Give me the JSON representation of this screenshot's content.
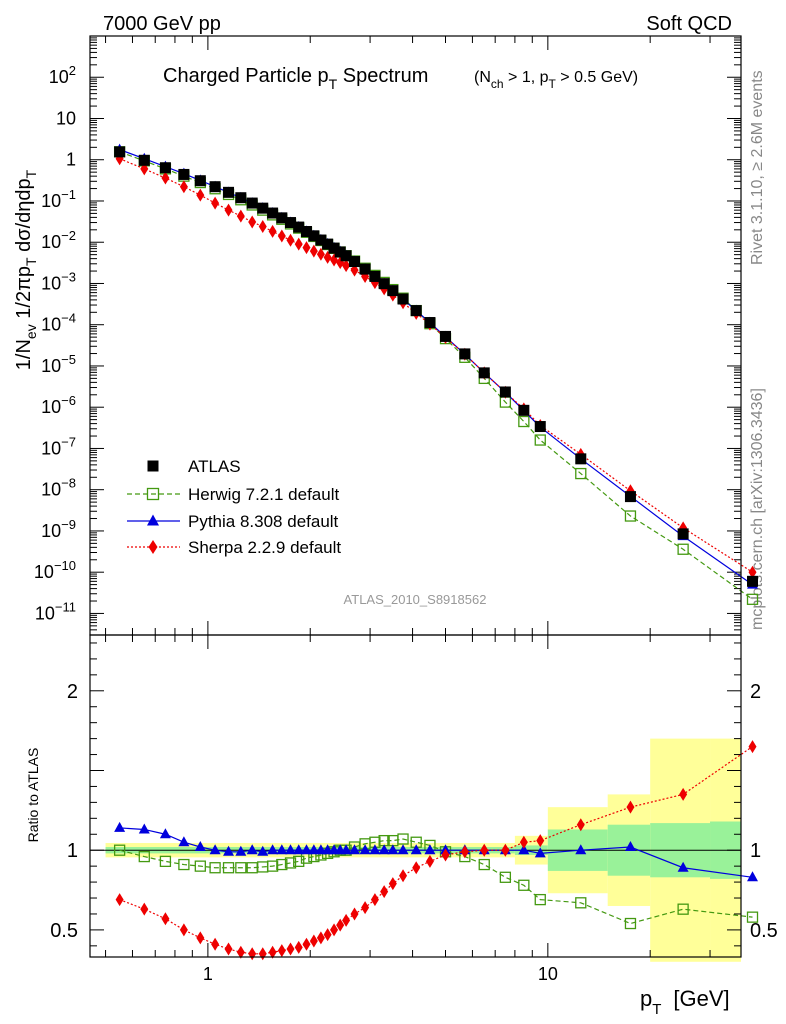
{
  "header": {
    "left": "7000 GeV pp",
    "right": "Soft QCD"
  },
  "side_labels": {
    "rivet": "Rivet 3.1.10, ≥ 2.6M events",
    "mcplots": "mcplots.cern.ch [arXiv:1306.3436]"
  },
  "chart_data": [
    {
      "type": "scatter",
      "title_main": "Charged Particle p",
      "title_main_sub": "T",
      "title_main_tail": " Spectrum",
      "title_cut_open": "(N",
      "title_cut_sub1": "ch",
      "title_cut_mid": " > 1, p",
      "title_cut_sub2": "T",
      "title_cut_tail": " > 0.5 GeV)",
      "ylabel": "1/N_ev 1/2πp_T dσ/dηdp_T",
      "watermark": "ATLAS_2010_S8918562",
      "xscale": "log",
      "yscale": "log",
      "xlim": [
        0.45,
        37
      ],
      "ylim": [
        3e-12,
        1000
      ],
      "ytick_labels": [
        "10^-11",
        "10^-10",
        "10^-9",
        "10^-8",
        "10^-7",
        "10^-6",
        "10^-5",
        "10^-4",
        "10^-3",
        "10^-2",
        "10^-1",
        "1",
        "10",
        "10^2"
      ],
      "legend": {
        "position": "lower-left",
        "entries": [
          "ATLAS",
          "Herwig 7.2.1 default",
          "Pythia 8.308 default",
          "Sherpa 2.2.9 default"
        ]
      },
      "x": [
        0.55,
        0.65,
        0.75,
        0.85,
        0.95,
        1.05,
        1.15,
        1.25,
        1.35,
        1.45,
        1.55,
        1.65,
        1.75,
        1.85,
        1.95,
        2.05,
        2.15,
        2.25,
        2.35,
        2.45,
        2.55,
        2.7,
        2.9,
        3.1,
        3.3,
        3.5,
        3.75,
        4.1,
        4.5,
        5.0,
        5.7,
        6.5,
        7.5,
        8.5,
        9.5,
        12.5,
        17.5,
        25.0,
        40.0
      ],
      "series": [
        {
          "name": "ATLAS",
          "color": "#000000",
          "marker": "square-filled",
          "values": [
            1.55,
            0.97,
            0.64,
            0.44,
            0.31,
            0.222,
            0.162,
            0.12,
            0.089,
            0.067,
            0.051,
            0.039,
            0.03,
            0.0233,
            0.0182,
            0.0143,
            0.0113,
            0.009,
            0.0072,
            0.0058,
            0.0047,
            0.0034,
            0.00223,
            0.00148,
            0.00099,
            0.00067,
            0.00042,
            0.00022,
            0.000113,
            5.2e-05,
            1.96e-05,
            6.8e-06,
            2.34e-06,
            8.4e-07,
            3.4e-07,
            5.6e-08,
            6.8e-09,
            8.5e-10,
            6e-11
          ]
        },
        {
          "name": "Herwig 7.2.1 default",
          "color": "#449911",
          "marker": "square-open",
          "line": "dashed",
          "values": [
            1.56,
            0.94,
            0.6,
            0.4,
            0.28,
            0.198,
            0.144,
            0.107,
            0.08,
            0.06,
            0.046,
            0.036,
            0.0278,
            0.022,
            0.0174,
            0.0138,
            0.011,
            0.0088,
            0.0071,
            0.0058,
            0.0047,
            0.0035,
            0.00234,
            0.00157,
            0.00106,
            0.00071,
            0.00044,
            0.00022,
            0.000106,
            4.6e-05,
            1.62e-05,
            5e-06,
            1.33e-06,
            4.5e-07,
            1.6e-07,
            2.46e-08,
            2.3e-09,
            3.6e-10,
            2.2e-11
          ]
        },
        {
          "name": "Pythia 8.308 default",
          "color": "#0000dd",
          "marker": "triangle",
          "line": "solid",
          "values": [
            1.76,
            1.06,
            0.68,
            0.46,
            0.315,
            0.222,
            0.161,
            0.119,
            0.089,
            0.067,
            0.051,
            0.039,
            0.03,
            0.0234,
            0.0183,
            0.0144,
            0.0114,
            0.0091,
            0.0073,
            0.0059,
            0.0047,
            0.0034,
            0.00222,
            0.00147,
            0.00098,
            0.00066,
            0.00041,
            0.00022,
            0.000112,
            5.1e-05,
            1.93e-05,
            6.8e-06,
            2.3e-06,
            8.3e-07,
            3.3e-07,
            5.6e-08,
            6.9e-09,
            7.5e-10,
            5e-11
          ]
        },
        {
          "name": "Sherpa 2.2.9 default",
          "color": "#ee0000",
          "marker": "diamond",
          "line": "dotted",
          "values": [
            1.06,
            0.6,
            0.36,
            0.222,
            0.139,
            0.089,
            0.06,
            0.043,
            0.031,
            0.024,
            0.0183,
            0.0142,
            0.0112,
            0.009,
            0.0074,
            0.0061,
            0.0051,
            0.0043,
            0.0037,
            0.0032,
            0.0027,
            0.0021,
            0.00148,
            0.00105,
            0.00074,
            0.00052,
            0.00034,
            0.000189,
            0.000103,
            4.9e-05,
            1.92e-05,
            6.8e-06,
            2.3e-06,
            9.1e-07,
            3.6e-07,
            7.2e-08,
            9.4e-09,
            1.19e-09,
            1e-10
          ]
        }
      ]
    },
    {
      "type": "scatter",
      "ylabel": "Ratio to ATLAS",
      "xlabel_main": "p",
      "xlabel_sub": "T",
      "xlabel_unit": "[GeV]",
      "xscale": "log",
      "xlim": [
        0.45,
        37
      ],
      "ylim": [
        0.33,
        2.35
      ],
      "xtick_labels": [
        "1",
        "10"
      ],
      "ytick_labels": [
        "0.5",
        "1",
        "2"
      ],
      "bands": [
        {
          "x0": 0.5,
          "x1": 8.0,
          "inner": 0.02,
          "outer": 0.045
        },
        {
          "x0": 8.0,
          "x1": 10.0,
          "inner": 0.03,
          "outer": 0.09
        },
        {
          "x0": 10.0,
          "x1": 15.0,
          "inner": 0.13,
          "outer": 0.27
        },
        {
          "x0": 15.0,
          "x1": 20.0,
          "inner": 0.16,
          "outer": 0.35
        },
        {
          "x0": 20.0,
          "x1": 30.0,
          "inner": 0.17,
          "outer": 0.7
        },
        {
          "x0": 30.0,
          "x1": 50.0,
          "inner": 0.18,
          "outer": 0.7
        }
      ],
      "x": [
        0.55,
        0.65,
        0.75,
        0.85,
        0.95,
        1.05,
        1.15,
        1.25,
        1.35,
        1.45,
        1.55,
        1.65,
        1.75,
        1.85,
        1.95,
        2.05,
        2.15,
        2.25,
        2.35,
        2.45,
        2.55,
        2.7,
        2.9,
        3.1,
        3.3,
        3.5,
        3.75,
        4.1,
        4.5,
        5.0,
        5.7,
        6.5,
        7.5,
        8.5,
        9.5,
        12.5,
        17.5,
        25.0,
        40.0
      ],
      "series": [
        {
          "name": "Herwig 7.2.1 default",
          "color": "#449911",
          "marker": "square-open",
          "line": "dashed",
          "values": [
            1.0,
            0.96,
            0.93,
            0.91,
            0.9,
            0.89,
            0.89,
            0.89,
            0.89,
            0.895,
            0.9,
            0.91,
            0.92,
            0.93,
            0.95,
            0.96,
            0.97,
            0.98,
            0.99,
            1.0,
            1.0,
            1.02,
            1.04,
            1.05,
            1.06,
            1.06,
            1.07,
            1.05,
            1.03,
            0.99,
            0.96,
            0.91,
            0.83,
            0.78,
            0.69,
            0.67,
            0.54,
            0.63,
            0.58
          ]
        },
        {
          "name": "Pythia 8.308 default",
          "color": "#0000dd",
          "marker": "triangle",
          "line": "solid",
          "values": [
            1.14,
            1.13,
            1.1,
            1.05,
            1.02,
            1.0,
            0.99,
            0.99,
            1.0,
            0.99,
            1.0,
            1.0,
            1.0,
            1.0,
            1.0,
            1.0,
            1.0,
            1.0,
            1.0,
            1.0,
            1.0,
            1.0,
            1.0,
            1.0,
            1.0,
            1.0,
            1.0,
            1.0,
            1.0,
            1.0,
            1.0,
            1.0,
            1.0,
            1.0,
            0.98,
            1.0,
            1.02,
            0.89,
            0.83
          ]
        },
        {
          "name": "Sherpa 2.2.9 default",
          "color": "#ee0000",
          "marker": "diamond",
          "line": "dotted",
          "values": [
            0.69,
            0.63,
            0.57,
            0.5,
            0.45,
            0.41,
            0.38,
            0.36,
            0.35,
            0.35,
            0.36,
            0.37,
            0.38,
            0.39,
            0.41,
            0.43,
            0.45,
            0.47,
            0.5,
            0.53,
            0.56,
            0.6,
            0.64,
            0.69,
            0.74,
            0.79,
            0.84,
            0.89,
            0.93,
            0.97,
            0.99,
            1.0,
            1.0,
            1.05,
            1.06,
            1.16,
            1.27,
            1.35,
            1.65
          ]
        }
      ]
    }
  ]
}
